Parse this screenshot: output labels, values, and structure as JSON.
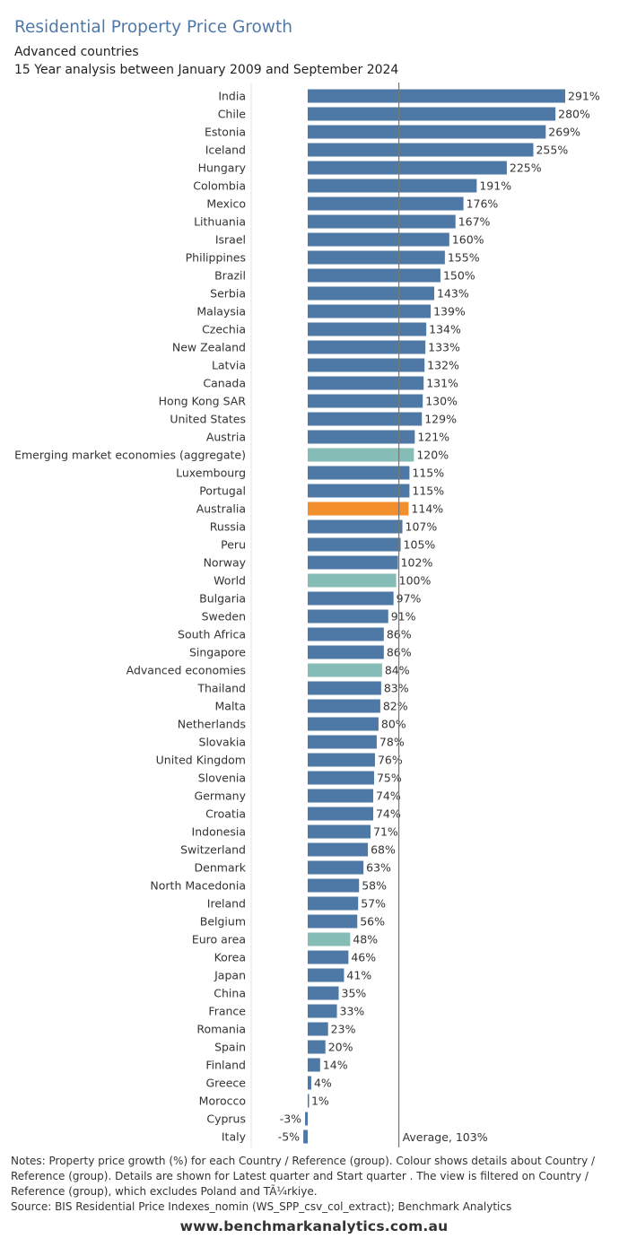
{
  "header": {
    "title": "Residential Property Price Growth",
    "subtitle_1": "Advanced countries",
    "subtitle_2": "15 Year analysis between January 2009 and September 2024"
  },
  "footer": {
    "notes": "Notes: Property price growth (%) for each Country / Reference (group).  Colour shows details about Country / Reference (group).  Details are shown for Latest quarter and Start quarter . The view is filtered on Country / Reference (group), which excludes Poland and TÃ¼rkiye.",
    "source": "Source: BIS Residential Price Indexes_nomin (WS_SPP_csv_col_extract); Benchmark Analytics",
    "website": "www.benchmarkanalytics.com.au"
  },
  "chart_data": {
    "type": "bar",
    "orientation": "horizontal",
    "value_suffix": "%",
    "average": {
      "value": 103,
      "label": "Average, 103%"
    },
    "colors": {
      "country": "#4e79a7",
      "group": "#86bcb6",
      "highlight": "#f28e2b"
    },
    "categories": [
      "India",
      "Chile",
      "Estonia",
      "Iceland",
      "Hungary",
      "Colombia",
      "Mexico",
      "Lithuania",
      "Israel",
      "Philippines",
      "Brazil",
      "Serbia",
      "Malaysia",
      "Czechia",
      "New Zealand",
      "Latvia",
      "Canada",
      "Hong Kong SAR",
      "United States",
      "Austria",
      "Emerging market economies (aggregate)",
      "Luxembourg",
      "Portugal",
      "Australia",
      "Russia",
      "Peru",
      "Norway",
      "World",
      "Bulgaria",
      "Sweden",
      "South Africa",
      "Singapore",
      "Advanced economies",
      "Thailand",
      "Malta",
      "Netherlands",
      "Slovakia",
      "United Kingdom",
      "Slovenia",
      "Germany",
      "Croatia",
      "Indonesia",
      "Switzerland",
      "Denmark",
      "North Macedonia",
      "Ireland",
      "Belgium",
      "Euro area",
      "Korea",
      "Japan",
      "China",
      "France",
      "Romania",
      "Spain",
      "Finland",
      "Greece",
      "Morocco",
      "Cyprus",
      "Italy"
    ],
    "values": [
      291,
      280,
      269,
      255,
      225,
      191,
      176,
      167,
      160,
      155,
      150,
      143,
      139,
      134,
      133,
      132,
      131,
      130,
      129,
      121,
      120,
      115,
      115,
      114,
      107,
      105,
      102,
      100,
      97,
      91,
      86,
      86,
      84,
      83,
      82,
      80,
      78,
      76,
      75,
      74,
      74,
      71,
      68,
      63,
      58,
      57,
      56,
      48,
      46,
      41,
      35,
      33,
      23,
      20,
      14,
      4,
      1,
      -3,
      -5
    ],
    "color_group": [
      "country",
      "country",
      "country",
      "country",
      "country",
      "country",
      "country",
      "country",
      "country",
      "country",
      "country",
      "country",
      "country",
      "country",
      "country",
      "country",
      "country",
      "country",
      "country",
      "country",
      "group",
      "country",
      "country",
      "highlight",
      "country",
      "country",
      "country",
      "group",
      "country",
      "country",
      "country",
      "country",
      "group",
      "country",
      "country",
      "country",
      "country",
      "country",
      "country",
      "country",
      "country",
      "country",
      "country",
      "country",
      "country",
      "country",
      "country",
      "group",
      "country",
      "country",
      "country",
      "country",
      "country",
      "country",
      "country",
      "country",
      "country",
      "country",
      "country"
    ]
  }
}
